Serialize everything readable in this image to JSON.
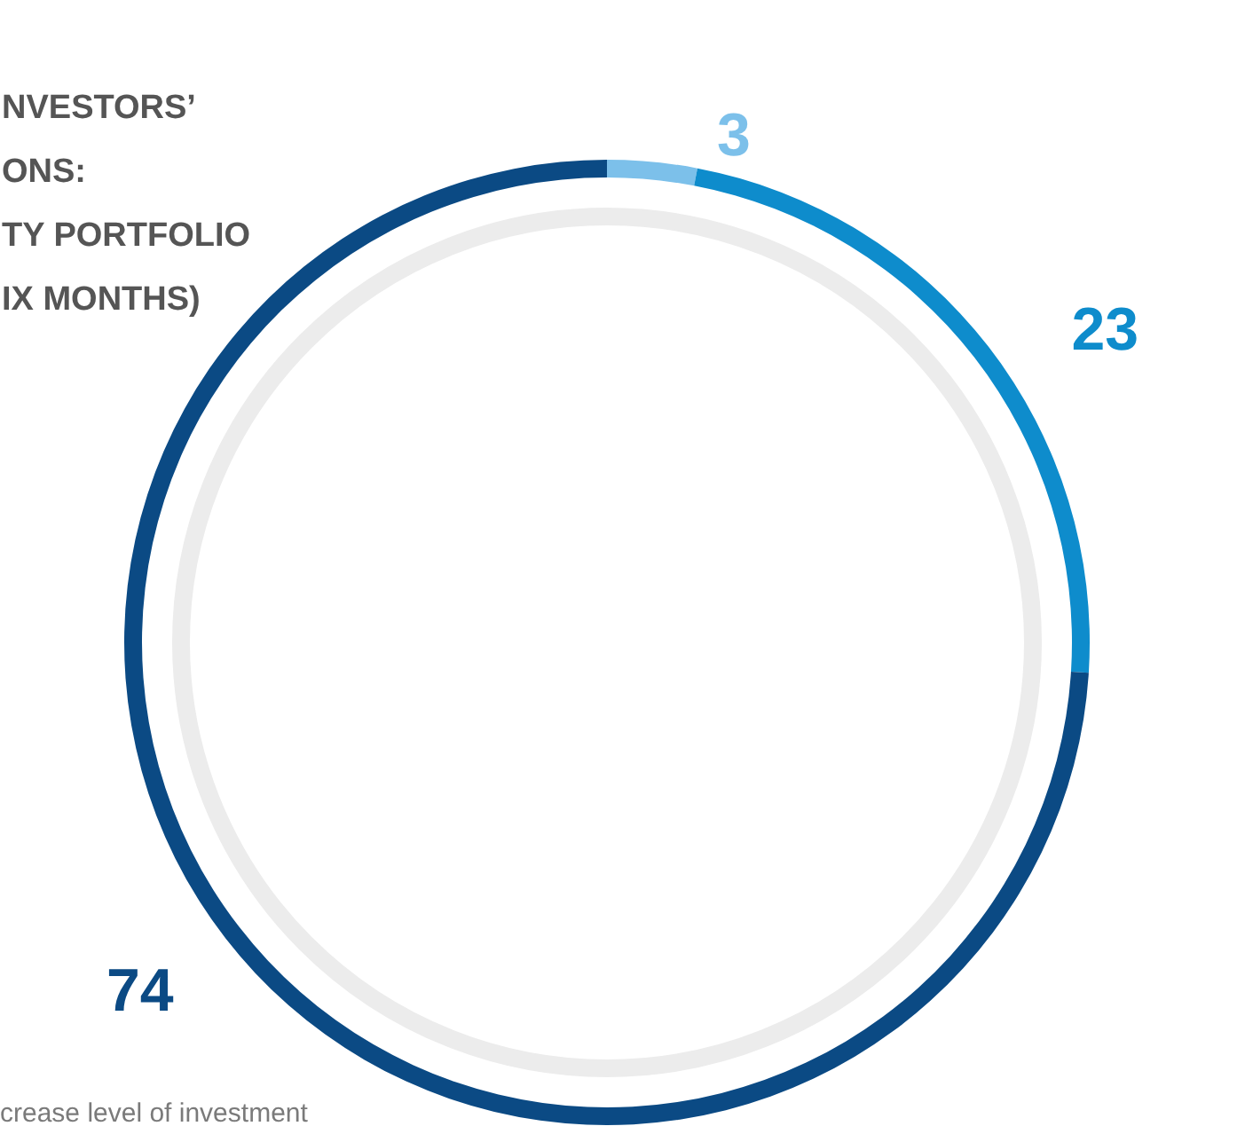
{
  "chart_data": {
    "type": "donut",
    "title": "NVESTORS’\nONS:\nTY PORTFOLIO\nIX MONTHS)",
    "categories": [
      null,
      null,
      null
    ],
    "values": [
      3,
      23,
      74
    ],
    "colors": [
      "#7cc0ea",
      "#0e8ccc",
      "#0b4a84"
    ],
    "data_labels": true,
    "annotations": [
      "crease level of investment"
    ]
  }
}
